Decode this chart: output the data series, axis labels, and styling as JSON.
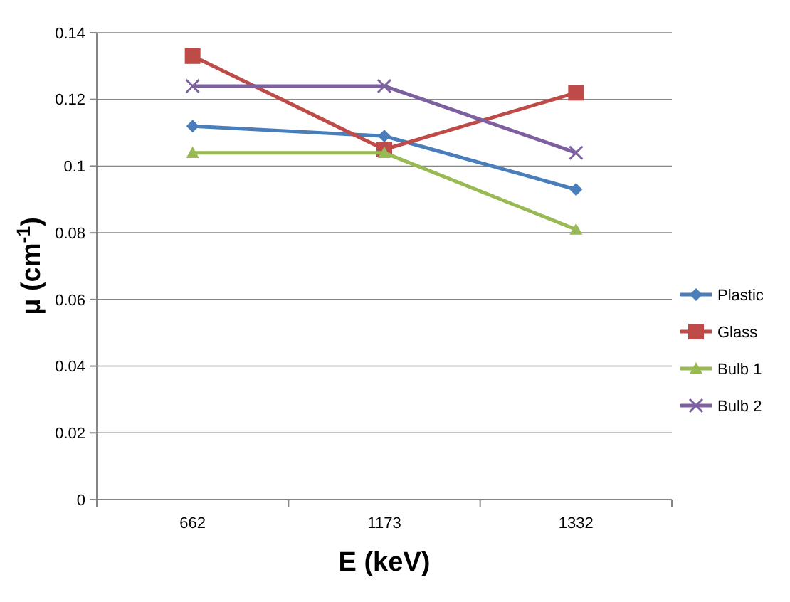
{
  "chart_data": {
    "type": "line",
    "xlabel": "E (keV)",
    "ylabel": "μ (cm$^{-1}$)",
    "categories": [
      "662",
      "1173",
      "1332"
    ],
    "series": [
      {
        "name": "Plastic",
        "color": "#4a7ebb",
        "marker": "diamond",
        "values": [
          0.112,
          0.109,
          0.093
        ]
      },
      {
        "name": "Glass",
        "color": "#be4b48",
        "marker": "square",
        "values": [
          0.133,
          0.105,
          0.122
        ]
      },
      {
        "name": "Bulb 1",
        "color": "#98b954",
        "marker": "triangle",
        "values": [
          0.104,
          0.104,
          0.081
        ]
      },
      {
        "name": "Bulb 2",
        "color": "#7d60a0",
        "marker": "cross",
        "values": [
          0.124,
          0.124,
          0.104
        ]
      }
    ],
    "ylim": [
      0,
      0.14
    ],
    "yticks": [
      0,
      0.02,
      0.04,
      0.06,
      0.08,
      0.1,
      0.12,
      0.14
    ],
    "grid": "y",
    "legend": "right"
  }
}
